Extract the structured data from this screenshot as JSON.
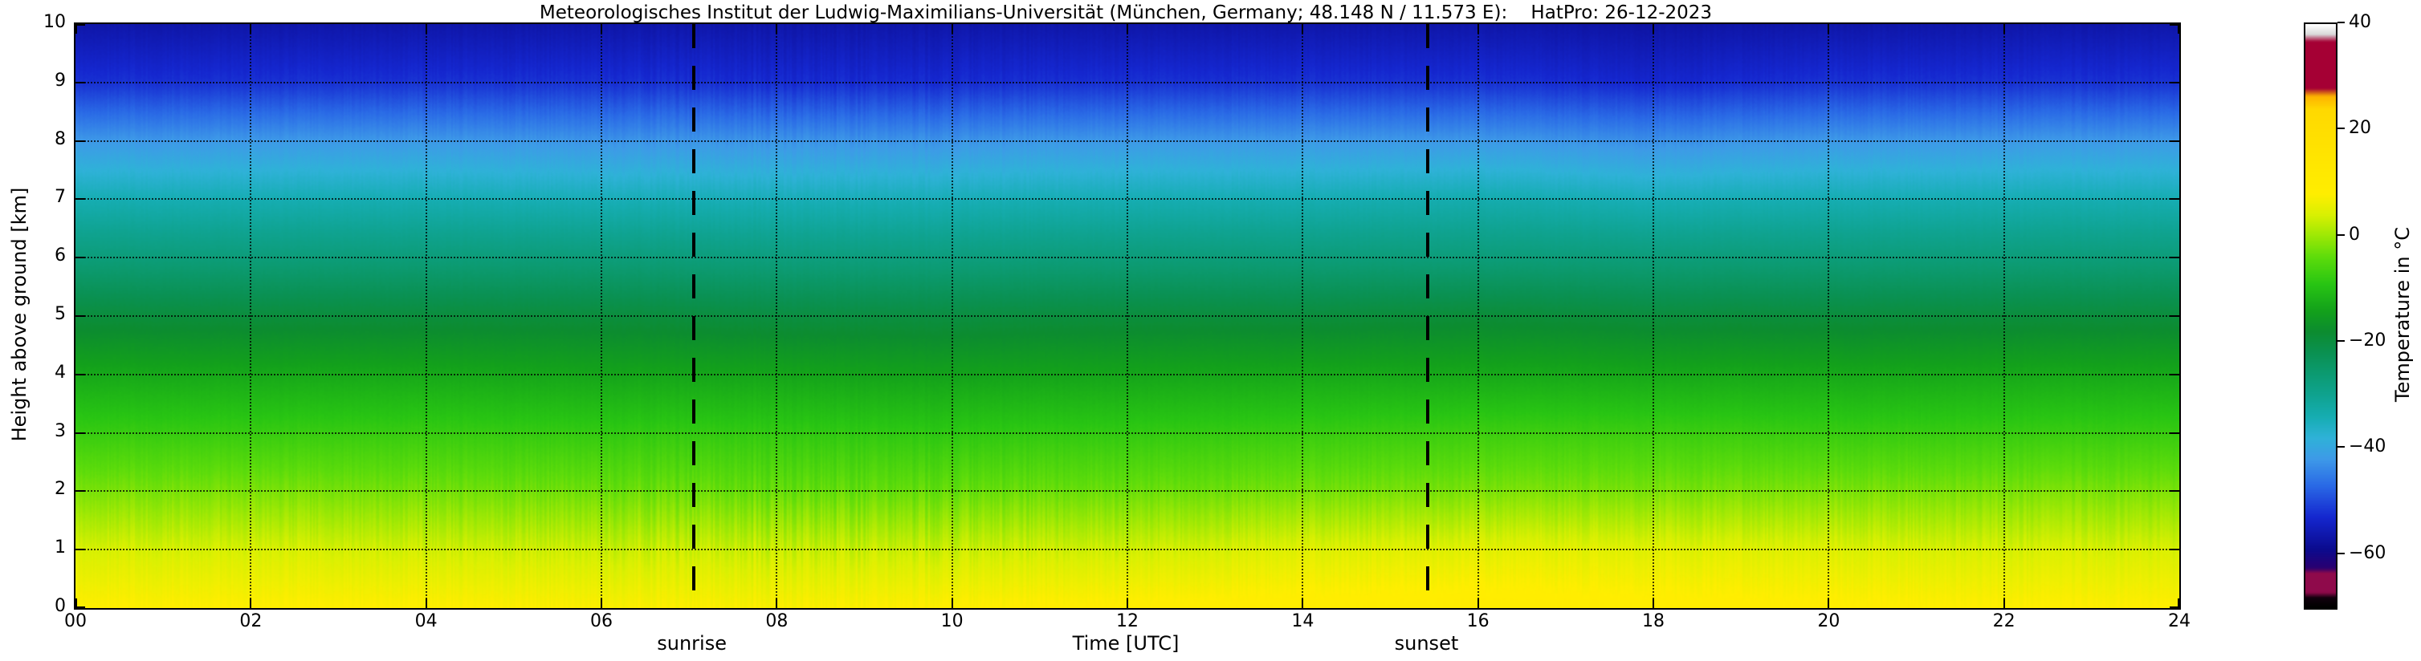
{
  "title": "Meteorologisches Institut der Ludwig-Maximilians-Universität (München, Germany; 48.148 N / 11.573 E):    HatPro: 26-12-2023",
  "x_axis": {
    "label": "Time [UTC]",
    "ticks": [
      "00",
      "02",
      "04",
      "06",
      "08",
      "10",
      "12",
      "14",
      "16",
      "18",
      "20",
      "22",
      "24"
    ],
    "range": [
      0,
      24
    ]
  },
  "y_axis": {
    "label": "Height above ground [km]",
    "ticks": [
      "0",
      "1",
      "2",
      "3",
      "4",
      "5",
      "6",
      "7",
      "8",
      "9",
      "10"
    ],
    "range": [
      0,
      10
    ]
  },
  "colorbar": {
    "label": "Temperature in °C",
    "range": [
      -70,
      40
    ],
    "ticks": [
      {
        "value": 40,
        "label": "40"
      },
      {
        "value": 20,
        "label": "20"
      },
      {
        "value": 0,
        "label": "0"
      },
      {
        "value": -20,
        "label": "−20"
      },
      {
        "value": -40,
        "label": "−40"
      },
      {
        "value": -60,
        "label": "−60"
      }
    ]
  },
  "annotations": {
    "sunrise": {
      "label": "sunrise",
      "time_utc": 7.05
    },
    "sunset": {
      "label": "sunset",
      "time_utc": 15.43
    }
  },
  "chart_data": {
    "type": "heatmap",
    "title": "HatPro microwave radiometer temperature profile, 26-12-2023",
    "xlabel": "Time [UTC]",
    "ylabel": "Height above ground [km]",
    "colorbar_label": "Temperature in °C",
    "x_hours": [
      0,
      2,
      4,
      6,
      8,
      10,
      12,
      14,
      16,
      18,
      20,
      22,
      24
    ],
    "y_km": [
      0,
      1,
      2,
      3,
      4,
      5,
      6,
      7,
      8,
      9,
      10
    ],
    "value_range": [
      -70,
      40
    ],
    "grid": "dotted",
    "sunrise_utc": 7.05,
    "sunset_utc": 15.43,
    "values_c": [
      [
        8,
        8,
        8,
        7.5,
        7.5,
        8,
        8.5,
        9,
        9.5,
        9,
        8.5,
        8,
        8
      ],
      [
        4,
        4,
        3.5,
        3,
        3,
        3,
        3.5,
        4.5,
        5,
        5,
        4.5,
        4,
        4
      ],
      [
        -2,
        -2,
        -2.5,
        -3,
        -3.5,
        -3.5,
        -3,
        -2.5,
        -2,
        -2,
        -2,
        -2,
        -2
      ],
      [
        -7.5,
        -7.5,
        -7.5,
        -8,
        -8,
        -8.5,
        -8,
        -7.5,
        -7,
        -7,
        -7.5,
        -7.5,
        -7.5
      ],
      [
        -13,
        -13,
        -13,
        -13.5,
        -13.5,
        -14,
        -13.5,
        -13,
        -13,
        -13,
        -13,
        -13,
        -13
      ],
      [
        -19.5,
        -19.5,
        -19.5,
        -19.5,
        -20,
        -20,
        -19.5,
        -19.5,
        -19,
        -19.5,
        -19.5,
        -19.5,
        -19.5
      ],
      [
        -27,
        -27,
        -27,
        -27,
        -27.5,
        -27.5,
        -27,
        -27,
        -27,
        -27,
        -27,
        -27,
        -27
      ],
      [
        -34,
        -34,
        -34,
        -34.5,
        -34.5,
        -34.5,
        -34,
        -34,
        -33.5,
        -34.5,
        -34,
        -34,
        -34
      ],
      [
        -42,
        -42,
        -42,
        -42.5,
        -42.5,
        -42.5,
        -42,
        -42,
        -42,
        -43,
        -42,
        -42,
        -42
      ],
      [
        -52,
        -52,
        -52,
        -52,
        -52.5,
        -52.5,
        -52,
        -52,
        -52,
        -53,
        -52,
        -52,
        -52
      ],
      [
        -56.5,
        -56.5,
        -56.5,
        -56.5,
        -56.5,
        -56.5,
        -56.5,
        -56.5,
        -56.5,
        -57,
        -56.5,
        -56.5,
        -56.5
      ]
    ],
    "colormap_stops": [
      [
        -70,
        "#000000"
      ],
      [
        -68.2,
        "#11000d"
      ],
      [
        -67.2,
        "#8f0a4b"
      ],
      [
        -63.6,
        "#8f0a4b"
      ],
      [
        -62.6,
        "#2a0070"
      ],
      [
        -59,
        "#0b0b8f"
      ],
      [
        -53,
        "#1527cf"
      ],
      [
        -47,
        "#2a6ae6"
      ],
      [
        -42,
        "#3e9ae8"
      ],
      [
        -38,
        "#2fb2d8"
      ],
      [
        -34,
        "#16adb2"
      ],
      [
        -30,
        "#0fa390"
      ],
      [
        -26,
        "#0c9b72"
      ],
      [
        -22,
        "#0a9152"
      ],
      [
        -18,
        "#0c8c30"
      ],
      [
        -14,
        "#13a11b"
      ],
      [
        -9,
        "#28c513"
      ],
      [
        -4,
        "#5cdc0b"
      ],
      [
        0,
        "#9ae805"
      ],
      [
        4,
        "#d8f002"
      ],
      [
        8,
        "#ffee00"
      ],
      [
        24,
        "#ffd900"
      ],
      [
        26.5,
        "#fdb300"
      ],
      [
        28,
        "#a50034"
      ],
      [
        36.8,
        "#a50034"
      ],
      [
        38.2,
        "#d9d9d9"
      ],
      [
        40,
        "#ffffff"
      ]
    ]
  }
}
